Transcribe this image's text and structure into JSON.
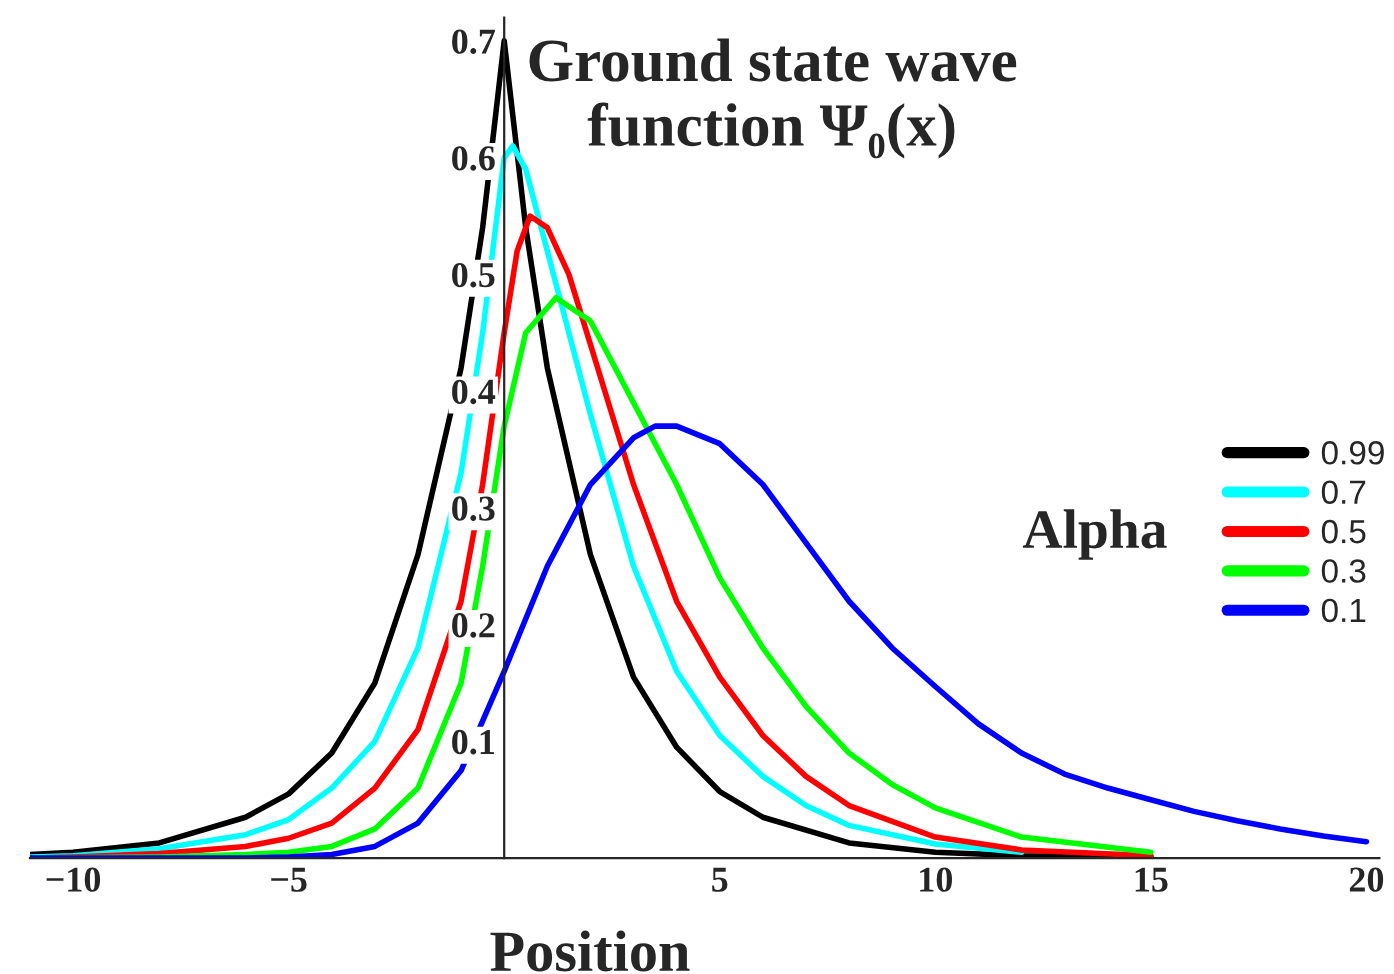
{
  "chart_data": {
    "type": "line",
    "title": "Ground state wave\nfunction Ψ₀(x)",
    "xlabel": "Position",
    "legend_title": "Alpha",
    "legend": "right",
    "grid": false,
    "line_style": "solid",
    "marker": "none",
    "xlim": [
      -11,
      20.3
    ],
    "ylim": [
      0,
      0.72
    ],
    "xticks": [
      {
        "value": -10,
        "label": "−10"
      },
      {
        "value": -5,
        "label": "−5"
      },
      5,
      10,
      15,
      20
    ],
    "yticks": [
      0.1,
      0.2,
      0.3,
      0.4,
      0.5,
      0.6,
      0.7
    ],
    "series": [
      {
        "name": "0.99",
        "color": "#000000",
        "x": [
          -11,
          -10,
          -8,
          -6,
          -5,
          -4,
          -3,
          -2,
          -1,
          -0.5,
          0,
          0.5,
          1,
          2,
          3,
          4,
          5,
          6,
          8,
          10,
          12,
          15
        ],
        "values": [
          0.003,
          0.005,
          0.013,
          0.035,
          0.055,
          0.09,
          0.15,
          0.26,
          0.42,
          0.54,
          0.7,
          0.54,
          0.42,
          0.26,
          0.155,
          0.095,
          0.057,
          0.035,
          0.013,
          0.005,
          0.002,
          0.001
        ]
      },
      {
        "name": "0.7",
        "color": "#00ffff",
        "x": [
          -11,
          -10,
          -8,
          -6,
          -5,
          -4,
          -3,
          -2,
          -1,
          -0.5,
          0,
          0.2,
          0.5,
          1,
          2,
          3,
          4,
          5,
          6,
          7,
          8,
          10,
          12
        ],
        "values": [
          0.001,
          0.002,
          0.008,
          0.02,
          0.033,
          0.06,
          0.1,
          0.18,
          0.33,
          0.45,
          0.6,
          0.61,
          0.59,
          0.52,
          0.38,
          0.25,
          0.16,
          0.105,
          0.07,
          0.045,
          0.028,
          0.012,
          0.005
        ]
      },
      {
        "name": "0.5",
        "color": "#ff0000",
        "x": [
          -11,
          -10,
          -8,
          -6,
          -5,
          -4,
          -3,
          -2,
          -1,
          -0.5,
          0,
          0.3,
          0.6,
          1,
          1.5,
          2,
          3,
          4,
          5,
          6,
          7,
          8,
          10,
          12,
          15
        ],
        "values": [
          0.0,
          0.001,
          0.004,
          0.01,
          0.017,
          0.03,
          0.06,
          0.11,
          0.22,
          0.32,
          0.45,
          0.52,
          0.55,
          0.54,
          0.5,
          0.44,
          0.32,
          0.22,
          0.155,
          0.105,
          0.07,
          0.045,
          0.018,
          0.007,
          0.002
        ]
      },
      {
        "name": "0.3",
        "color": "#00ff00",
        "x": [
          -11,
          -8,
          -6,
          -5,
          -4,
          -3,
          -2,
          -1,
          -0.5,
          0,
          0.5,
          1.2,
          2,
          3,
          4,
          5,
          6,
          7,
          8,
          9,
          10,
          12,
          15
        ],
        "values": [
          0.0,
          0.001,
          0.003,
          0.005,
          0.01,
          0.025,
          0.06,
          0.15,
          0.25,
          0.37,
          0.45,
          0.48,
          0.46,
          0.39,
          0.32,
          0.24,
          0.18,
          0.13,
          0.09,
          0.063,
          0.043,
          0.018,
          0.005
        ]
      },
      {
        "name": "0.1",
        "color": "#0000ff",
        "x": [
          -11,
          -6,
          -5,
          -4,
          -3,
          -2,
          -1,
          0,
          1,
          2,
          3,
          3.5,
          4,
          5,
          6,
          7,
          8,
          9,
          10,
          11,
          12,
          13,
          14,
          15,
          16,
          17,
          18,
          19,
          20
        ],
        "values": [
          0.0,
          0.0,
          0.001,
          0.003,
          0.01,
          0.03,
          0.075,
          0.16,
          0.25,
          0.32,
          0.36,
          0.37,
          0.37,
          0.355,
          0.32,
          0.27,
          0.22,
          0.18,
          0.147,
          0.115,
          0.09,
          0.072,
          0.06,
          0.05,
          0.04,
          0.032,
          0.025,
          0.019,
          0.014
        ]
      }
    ]
  }
}
